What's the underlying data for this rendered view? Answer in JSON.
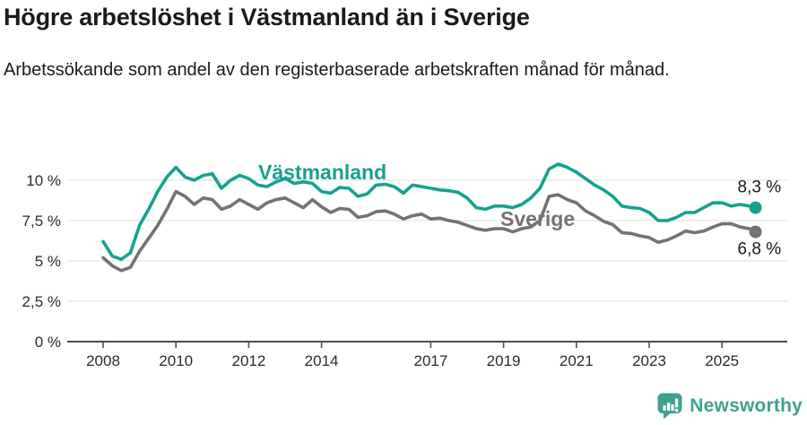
{
  "header": {
    "title": "Högre arbetslöshet i Västmanland än i Sverige",
    "subtitle": "Arbetssökande som andel av den registerbaserade arbetskraften månad för månad."
  },
  "branding": {
    "logo_text": "Newsworthy",
    "logo_icon": "speech-bubble-with-bar-chart-and-exclamation"
  },
  "colors": {
    "vastmanland": "#15a28f",
    "sverige": "#737373",
    "grid": "#dcdcdc",
    "axis": "#4d4d4d",
    "tick_text": "#2b2b2b",
    "end_label_text": "#1a1a1a",
    "logo": "#3fa191",
    "background": "#ffffff"
  },
  "chart_data": {
    "type": "line",
    "title": "Högre arbetslöshet i Västmanland än i Sverige",
    "subtitle": "Arbetssökande som andel av den registerbaserade arbetskraften månad för månad.",
    "unit": "%",
    "grid": true,
    "legend_position": "inline-labels-on-lines",
    "xlim": [
      2008,
      2026
    ],
    "ylim": [
      0,
      11.5
    ],
    "x_ticks": [
      2008,
      2010,
      2012,
      2014,
      2017,
      2019,
      2021,
      2023,
      2025
    ],
    "x_tick_labels": [
      "2008",
      "2010",
      "2012",
      "2014",
      "2017",
      "2019",
      "2021",
      "2023",
      "2025"
    ],
    "y_ticks": [
      0,
      2.5,
      5,
      7.5,
      10
    ],
    "y_tick_labels": [
      "0 %",
      "2,5 %",
      "5 %",
      "7,5 %",
      "10 %"
    ],
    "x": [
      2008.0,
      2008.25,
      2008.5,
      2008.75,
      2009.0,
      2009.25,
      2009.5,
      2009.75,
      2010.0,
      2010.25,
      2010.5,
      2010.75,
      2011.0,
      2011.25,
      2011.5,
      2011.75,
      2012.0,
      2012.25,
      2012.5,
      2012.75,
      2013.0,
      2013.25,
      2013.5,
      2013.75,
      2014.0,
      2014.25,
      2014.5,
      2014.75,
      2015.0,
      2015.25,
      2015.5,
      2015.75,
      2016.0,
      2016.25,
      2016.5,
      2016.75,
      2017.0,
      2017.25,
      2017.5,
      2017.75,
      2018.0,
      2018.25,
      2018.5,
      2018.75,
      2019.0,
      2019.25,
      2019.5,
      2019.75,
      2020.0,
      2020.25,
      2020.5,
      2020.75,
      2021.0,
      2021.25,
      2021.5,
      2021.75,
      2022.0,
      2022.25,
      2022.5,
      2022.75,
      2023.0,
      2023.25,
      2023.5,
      2023.75,
      2024.0,
      2024.25,
      2024.5,
      2024.75,
      2025.0,
      2025.25,
      2025.5,
      2025.75,
      2025.92
    ],
    "series": [
      {
        "name": "Västmanland",
        "color": "#15a28f",
        "end_label": "8,3 %",
        "end_value": 8.3,
        "values": [
          6.2,
          5.3,
          5.1,
          5.5,
          7.2,
          8.2,
          9.3,
          10.2,
          10.8,
          10.2,
          10.0,
          10.3,
          10.4,
          9.5,
          10.0,
          10.3,
          10.1,
          9.7,
          9.6,
          9.9,
          10.1,
          9.8,
          9.9,
          9.8,
          9.3,
          9.2,
          9.55,
          9.5,
          9.0,
          9.15,
          9.7,
          9.75,
          9.6,
          9.2,
          9.7,
          9.6,
          9.5,
          9.4,
          9.35,
          9.25,
          8.9,
          8.3,
          8.2,
          8.4,
          8.4,
          8.3,
          8.5,
          8.9,
          9.5,
          10.7,
          11.0,
          10.8,
          10.5,
          10.1,
          9.7,
          9.4,
          9.0,
          8.4,
          8.3,
          8.25,
          8.0,
          7.5,
          7.5,
          7.7,
          8.0,
          8.0,
          8.3,
          8.6,
          8.6,
          8.4,
          8.5,
          8.4,
          8.3
        ]
      },
      {
        "name": "Sverige",
        "color": "#737373",
        "end_label": "6,8 %",
        "end_value": 6.8,
        "values": [
          5.2,
          4.7,
          4.4,
          4.6,
          5.6,
          6.4,
          7.2,
          8.2,
          9.3,
          9.0,
          8.5,
          8.9,
          8.8,
          8.2,
          8.4,
          8.8,
          8.5,
          8.2,
          8.6,
          8.8,
          8.9,
          8.6,
          8.3,
          8.8,
          8.35,
          8.0,
          8.25,
          8.2,
          7.7,
          7.8,
          8.05,
          8.1,
          7.9,
          7.6,
          7.8,
          7.9,
          7.6,
          7.65,
          7.5,
          7.4,
          7.2,
          7.0,
          6.9,
          7.0,
          7.0,
          6.8,
          7.0,
          7.1,
          7.5,
          9.0,
          9.1,
          8.8,
          8.6,
          8.1,
          7.8,
          7.45,
          7.25,
          6.75,
          6.7,
          6.55,
          6.45,
          6.15,
          6.3,
          6.55,
          6.85,
          6.75,
          6.85,
          7.1,
          7.3,
          7.3,
          7.1,
          7.0,
          6.8
        ]
      }
    ]
  }
}
